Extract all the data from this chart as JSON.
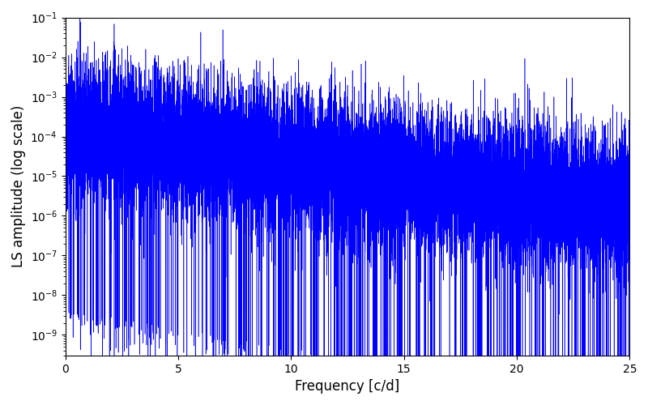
{
  "title": "",
  "xlabel": "Frequency [c/d]",
  "ylabel": "LS amplitude (log scale)",
  "xlim": [
    0,
    25
  ],
  "ylim": [
    3e-10,
    0.1
  ],
  "color": "#0000ff",
  "linewidth": 0.4,
  "yscale": "log",
  "figsize": [
    8.0,
    5.0
  ],
  "dpi": 100,
  "seed": 12345,
  "n_points": 15000,
  "freq_max": 25.0,
  "base_amplitude": 0.00015,
  "decay_rate": 0.18,
  "spike_interval": 0.25,
  "noise_sigma": 2.0,
  "background_color": "#ffffff"
}
